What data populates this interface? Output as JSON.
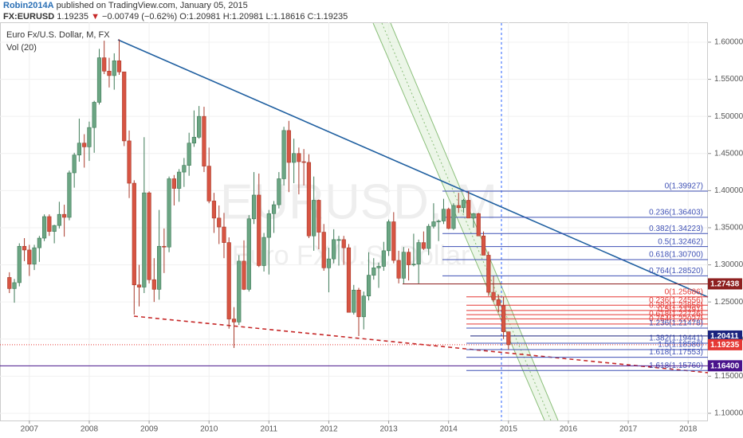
{
  "header": {
    "author": "Robin2014A",
    "published": "published on TradingView.com, January 05, 2015",
    "symbol": "FX:EURUSD",
    "last": "1.19235",
    "arrow": "▼",
    "change": "−0.00749 (−0.62%)",
    "ohlc": "O:1.20981 H:1.20981 L:1.18616 C:1.19235"
  },
  "chart_data": {
    "type": "candlestick",
    "legend_title": "Euro Fx/U.S. Dollar, M, FX",
    "volume_label": "Vol (20)",
    "watermark": "EURUSD, M",
    "watermark_sub": "Euro FX/U.S. Dollar",
    "up_color": "#6ba583",
    "down_color": "#d75442",
    "x": [
      2006.667,
      2006.75,
      2006.833,
      2006.917,
      2007,
      2007.083,
      2007.167,
      2007.25,
      2007.333,
      2007.417,
      2007.5,
      2007.583,
      2007.667,
      2007.75,
      2007.833,
      2007.917,
      2008,
      2008.083,
      2008.167,
      2008.25,
      2008.333,
      2008.417,
      2008.5,
      2008.583,
      2008.667,
      2008.75,
      2008.833,
      2008.917,
      2009,
      2009.083,
      2009.167,
      2009.25,
      2009.333,
      2009.417,
      2009.5,
      2009.583,
      2009.667,
      2009.75,
      2009.833,
      2009.917,
      2010,
      2010.083,
      2010.167,
      2010.25,
      2010.333,
      2010.417,
      2010.5,
      2010.583,
      2010.667,
      2010.75,
      2010.833,
      2010.917,
      2011,
      2011.083,
      2011.167,
      2011.25,
      2011.333,
      2011.417,
      2011.5,
      2011.583,
      2011.667,
      2011.75,
      2011.833,
      2011.917,
      2012,
      2012.083,
      2012.167,
      2012.25,
      2012.333,
      2012.417,
      2012.5,
      2012.583,
      2012.667,
      2012.75,
      2012.833,
      2012.917,
      2013,
      2013.083,
      2013.167,
      2013.25,
      2013.333,
      2013.417,
      2013.5,
      2013.583,
      2013.667,
      2013.75,
      2013.833,
      2013.917,
      2014,
      2014.083,
      2014.167,
      2014.25,
      2014.333,
      2014.417,
      2014.5,
      2014.583,
      2014.667,
      2014.75,
      2014.833,
      2014.917,
      2015
    ],
    "open": [
      1.283,
      1.268,
      1.276,
      1.325,
      1.32,
      1.301,
      1.323,
      1.336,
      1.365,
      1.345,
      1.353,
      1.368,
      1.364,
      1.424,
      1.448,
      1.464,
      1.459,
      1.485,
      1.519,
      1.579,
      1.561,
      1.555,
      1.575,
      1.56,
      1.467,
      1.41,
      1.273,
      1.27,
      1.397,
      1.28,
      1.267,
      1.325,
      1.324,
      1.416,
      1.403,
      1.425,
      1.434,
      1.464,
      1.472,
      1.5,
      1.433,
      1.386,
      1.363,
      1.351,
      1.33,
      1.227,
      1.223,
      1.305,
      1.267,
      1.362,
      1.394,
      1.299,
      1.337,
      1.369,
      1.381,
      1.416,
      1.481,
      1.438,
      1.45,
      1.439,
      1.438,
      1.339,
      1.387,
      1.344,
      1.296,
      1.308,
      1.334,
      1.334,
      1.323,
      1.236,
      1.266,
      1.23,
      1.258,
      1.286,
      1.296,
      1.298,
      1.319,
      1.358,
      1.306,
      1.282,
      1.317,
      1.3,
      1.301,
      1.33,
      1.322,
      1.352,
      1.358,
      1.359,
      1.375,
      1.349,
      1.38,
      1.377,
      1.387,
      1.363,
      1.369,
      1.339,
      1.313,
      1.263,
      1.253,
      1.245,
      1.20981
    ],
    "high": [
      1.29,
      1.281,
      1.329,
      1.336,
      1.327,
      1.327,
      1.339,
      1.368,
      1.368,
      1.354,
      1.385,
      1.381,
      1.427,
      1.451,
      1.497,
      1.476,
      1.493,
      1.521,
      1.591,
      1.602,
      1.579,
      1.585,
      1.604,
      1.56,
      1.481,
      1.414,
      1.3,
      1.472,
      1.399,
      1.309,
      1.374,
      1.349,
      1.419,
      1.421,
      1.429,
      1.444,
      1.478,
      1.508,
      1.514,
      1.513,
      1.458,
      1.397,
      1.38,
      1.37,
      1.337,
      1.243,
      1.313,
      1.333,
      1.367,
      1.425,
      1.423,
      1.343,
      1.374,
      1.386,
      1.425,
      1.486,
      1.494,
      1.47,
      1.458,
      1.456,
      1.449,
      1.419,
      1.388,
      1.355,
      1.323,
      1.348,
      1.339,
      1.339,
      1.328,
      1.273,
      1.269,
      1.264,
      1.317,
      1.309,
      1.303,
      1.331,
      1.361,
      1.371,
      1.319,
      1.324,
      1.322,
      1.342,
      1.334,
      1.345,
      1.355,
      1.383,
      1.361,
      1.389,
      1.377,
      1.383,
      1.397,
      1.389,
      1.399,
      1.37,
      1.37,
      1.345,
      1.318,
      1.285,
      1.26,
      1.257,
      1.20981
    ],
    "low": [
      1.262,
      1.249,
      1.271,
      1.305,
      1.285,
      1.293,
      1.304,
      1.332,
      1.339,
      1.329,
      1.349,
      1.338,
      1.36,
      1.404,
      1.439,
      1.431,
      1.44,
      1.451,
      1.516,
      1.557,
      1.539,
      1.536,
      1.556,
      1.46,
      1.39,
      1.233,
      1.244,
      1.262,
      1.275,
      1.25,
      1.253,
      1.289,
      1.317,
      1.38,
      1.385,
      1.405,
      1.42,
      1.459,
      1.47,
      1.425,
      1.383,
      1.343,
      1.328,
      1.309,
      1.214,
      1.188,
      1.219,
      1.266,
      1.264,
      1.355,
      1.297,
      1.291,
      1.287,
      1.343,
      1.376,
      1.407,
      1.398,
      1.41,
      1.395,
      1.407,
      1.336,
      1.319,
      1.321,
      1.292,
      1.263,
      1.302,
      1.299,
      1.3,
      1.236,
      1.233,
      1.204,
      1.213,
      1.252,
      1.28,
      1.269,
      1.292,
      1.312,
      1.302,
      1.275,
      1.275,
      1.279,
      1.298,
      1.275,
      1.32,
      1.313,
      1.349,
      1.332,
      1.355,
      1.348,
      1.347,
      1.37,
      1.37,
      1.363,
      1.35,
      1.339,
      1.313,
      1.258,
      1.25,
      1.236,
      1.2,
      1.18616
    ],
    "close": [
      1.268,
      1.276,
      1.325,
      1.32,
      1.301,
      1.323,
      1.336,
      1.365,
      1.345,
      1.353,
      1.368,
      1.364,
      1.424,
      1.448,
      1.464,
      1.459,
      1.485,
      1.519,
      1.579,
      1.561,
      1.555,
      1.575,
      1.56,
      1.467,
      1.41,
      1.273,
      1.27,
      1.397,
      1.28,
      1.267,
      1.325,
      1.324,
      1.416,
      1.403,
      1.425,
      1.434,
      1.464,
      1.472,
      1.5,
      1.433,
      1.386,
      1.363,
      1.351,
      1.33,
      1.227,
      1.223,
      1.305,
      1.267,
      1.362,
      1.394,
      1.299,
      1.337,
      1.369,
      1.381,
      1.416,
      1.481,
      1.438,
      1.45,
      1.439,
      1.438,
      1.339,
      1.387,
      1.344,
      1.296,
      1.308,
      1.334,
      1.334,
      1.323,
      1.236,
      1.266,
      1.23,
      1.258,
      1.286,
      1.296,
      1.298,
      1.319,
      1.358,
      1.306,
      1.282,
      1.317,
      1.3,
      1.301,
      1.33,
      1.322,
      1.352,
      1.358,
      1.359,
      1.375,
      1.349,
      1.38,
      1.377,
      1.387,
      1.363,
      1.369,
      1.339,
      1.313,
      1.263,
      1.253,
      1.245,
      1.20981,
      1.19235
    ],
    "xlim": [
      2006.51,
      2018.33
    ],
    "xticks": [
      2007,
      2008,
      2009,
      2010,
      2011,
      2012,
      2013,
      2014,
      2015,
      2016,
      2017,
      2018
    ],
    "ylim": [
      1.0903,
      1.6268
    ],
    "yticks": [
      {
        "value": 1.1,
        "label": "1.10000"
      },
      {
        "value": 1.15,
        "label": "1.15000"
      },
      {
        "value": 1.2,
        "label": "1.20000"
      },
      {
        "value": 1.25,
        "label": "1.25000"
      },
      {
        "value": 1.3,
        "label": "1.30000"
      },
      {
        "value": 1.35,
        "label": "1.35000"
      },
      {
        "value": 1.4,
        "label": "1.40000"
      },
      {
        "value": 1.45,
        "label": "1.45000"
      },
      {
        "value": 1.5,
        "label": "1.50000"
      },
      {
        "value": 1.55,
        "label": "1.55000"
      },
      {
        "value": 1.6,
        "label": "1.60000"
      }
    ],
    "grid": true,
    "fib_levels": [
      {
        "color": "#3f51b5",
        "values": [
          1.39927,
          1.36403,
          1.34223,
          1.32462,
          1.307,
          1.2852
        ],
        "value_labels": [
          "0(1.39927)",
          "0.236(1.36403)",
          "0.382(1.34223)",
          "0.5(1.32462)",
          "0.618(1.30700)",
          "0.764(1.28520)"
        ]
      },
      {
        "color": "#e53935",
        "values": [
          1.25686,
          1.24556,
          1.23856,
          1.23291,
          1.22726,
          1.22027
        ],
        "value_labels": [
          "0(1.25686)",
          "0.236(1.24556)",
          "0.382(1.23856)",
          "0.5(1.23291)",
          "0.618(1.22726)",
          "0.764(1.22027)"
        ]
      },
      {
        "color": "#3f51b5",
        "values": [
          1.21478,
          1.19441,
          1.18586,
          1.17553,
          1.1576
        ],
        "value_labels": [
          "1.236(1.21478)",
          "1.382(1.19441)",
          "1.5(1.18586)",
          "1.618(1.17553)",
          "1.618(1.15760)"
        ]
      }
    ],
    "price_lines": [
      {
        "value": 1.27438,
        "label": "1.27438",
        "color": "#8e2020"
      },
      {
        "value": 1.20411,
        "label": "1.20411",
        "color": "#1a237e"
      },
      {
        "value": 1.19235,
        "label": "1.19235",
        "color": "#e53935"
      },
      {
        "value": 1.164,
        "label": "1.16400",
        "color": "#4a148c"
      }
    ]
  }
}
